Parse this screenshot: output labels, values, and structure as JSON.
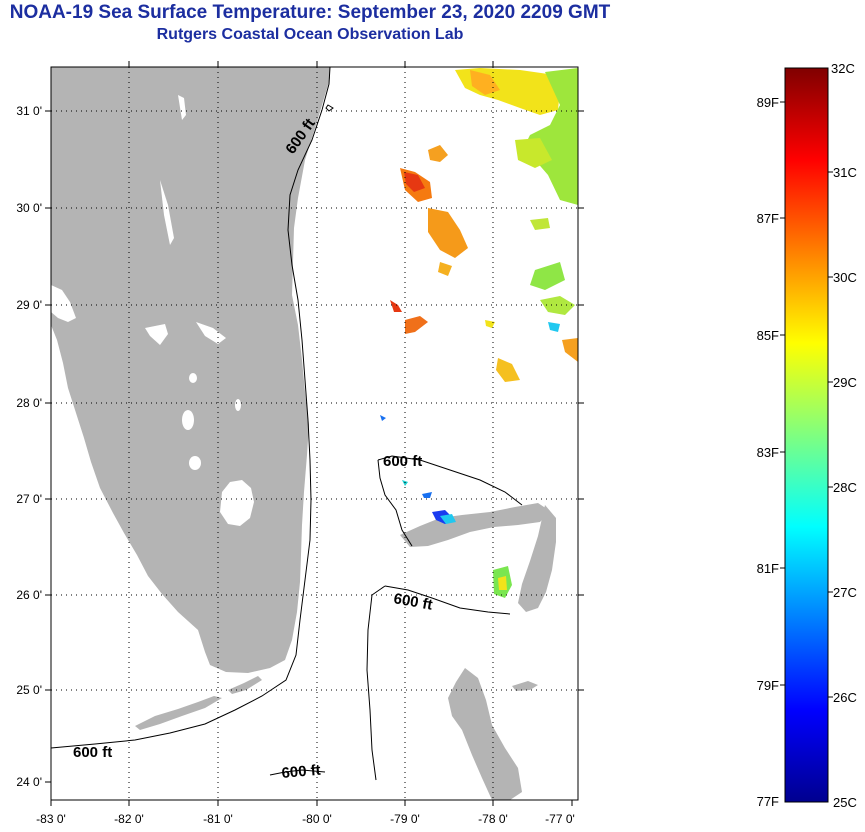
{
  "title": "NOAA-19 Sea Surface Temperature:  September 23, 2020 2209 GMT",
  "subtitle": "Rutgers Coastal Ocean Observation Lab",
  "map": {
    "lon_labels": [
      "-83 0'",
      "-82 0'",
      "-81 0'",
      "-80 0'",
      "-79 0'",
      "-78 0'",
      "-77 0'"
    ],
    "lat_labels": [
      "31 0'",
      "30 0'",
      "29 0'",
      "28 0'",
      "27 0'",
      "26 0'",
      "25 0'",
      "24 0'"
    ],
    "isobath_labels": [
      "600 ft",
      "600 ft",
      "600 ft",
      "600 ft",
      "600 ft"
    ],
    "land_color": "#b4b4b4"
  },
  "colorbar": {
    "celsius_labels": [
      "32C",
      "31C",
      "30C",
      "29C",
      "28C",
      "27C",
      "26C",
      "25C"
    ],
    "fahrenheit_labels": [
      "89F",
      "87F",
      "85F",
      "83F",
      "81F",
      "79F",
      "77F"
    ]
  }
}
